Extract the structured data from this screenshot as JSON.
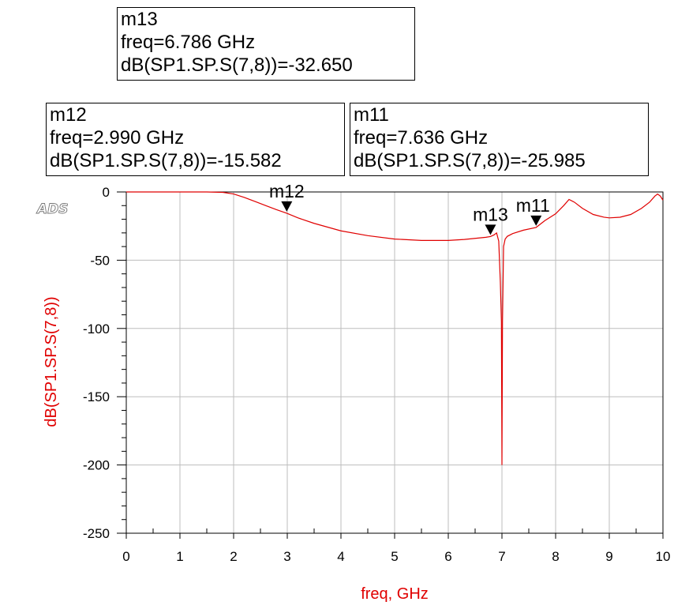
{
  "logo": "ADS",
  "markers": [
    {
      "name": "m13",
      "freq": "freq=6.786 GHz",
      "value": "dB(SP1.SP.S(7,8))=-32.650",
      "x": 6.786,
      "y": -32.65
    },
    {
      "name": "m12",
      "freq": "freq=2.990 GHz",
      "value": "dB(SP1.SP.S(7,8))=-15.582",
      "x": 2.99,
      "y": -15.582
    },
    {
      "name": "m11",
      "freq": "freq=7.636 GHz",
      "value": "dB(SP1.SP.S(7,8))=-25.985",
      "x": 7.636,
      "y": -25.985
    }
  ],
  "chart_data": {
    "type": "line",
    "xlabel": "freq, GHz",
    "ylabel": "dB(SP1.SP.S(7,8))",
    "xlim": [
      0,
      10
    ],
    "ylim": [
      -250,
      0
    ],
    "x_ticks": [
      "0",
      "1",
      "2",
      "3",
      "4",
      "5",
      "6",
      "7",
      "8",
      "9",
      "10"
    ],
    "y_ticks": [
      "0",
      "-50",
      "-100",
      "-150",
      "-200",
      "-250"
    ],
    "grid": true,
    "line_color": "#e00000",
    "series": [
      {
        "x": [
          0,
          0.5,
          1,
          1.5,
          1.8,
          2,
          2.2,
          2.4,
          2.6,
          2.8,
          2.99,
          3.2,
          3.5,
          4,
          4.5,
          5,
          5.5,
          6,
          6.3,
          6.5,
          6.7,
          6.786,
          6.85,
          6.9,
          6.94,
          6.97,
          6.99,
          7.0,
          7.01,
          7.03,
          7.06,
          7.1,
          7.2,
          7.4,
          7.636,
          7.8,
          8.0,
          8.15,
          8.25,
          8.35,
          8.5,
          8.7,
          8.9,
          9.0,
          9.2,
          9.4,
          9.6,
          9.75,
          9.85,
          9.9,
          9.95,
          10
        ],
        "y": [
          0,
          0,
          0,
          0,
          -0.3,
          -1.5,
          -4,
          -7,
          -10,
          -13,
          -15.582,
          -19,
          -23,
          -28.5,
          -32,
          -34.5,
          -35.5,
          -35.5,
          -34.8,
          -34,
          -33.2,
          -32.65,
          -31.5,
          -30,
          -36,
          -66,
          -95,
          -200,
          -95,
          -40,
          -34.5,
          -32.5,
          -30.5,
          -28,
          -25.985,
          -21,
          -16,
          -10,
          -5.5,
          -7.5,
          -12,
          -16.5,
          -18.5,
          -19,
          -18.5,
          -16.5,
          -12,
          -7.5,
          -3,
          -1.5,
          -3,
          -6
        ]
      }
    ]
  }
}
